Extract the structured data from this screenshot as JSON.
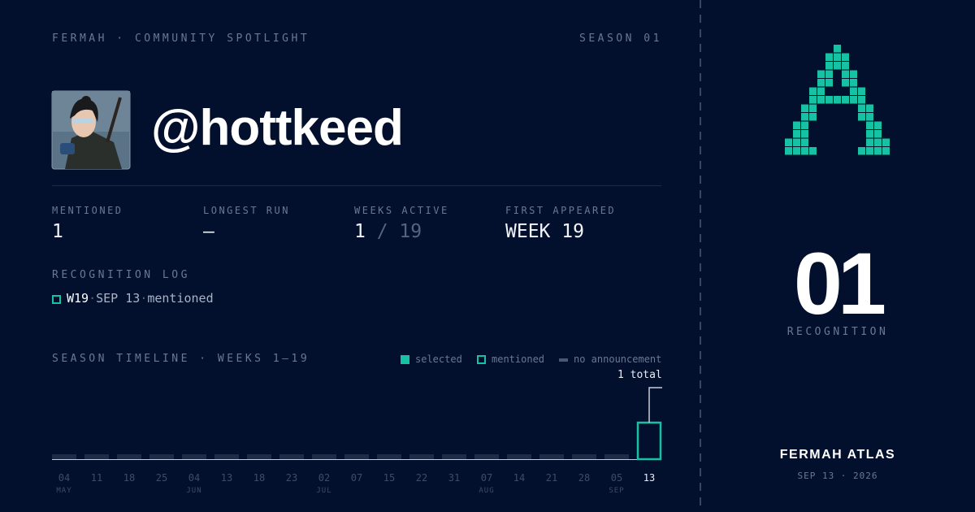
{
  "header": {
    "brand": "FERMAH · COMMUNITY SPOTLIGHT",
    "season": "SEASON 01"
  },
  "profile": {
    "handle": "@hottkeed"
  },
  "stats": [
    {
      "label": "MENTIONED",
      "value": "1"
    },
    {
      "label": "LONGEST RUN",
      "value": "—"
    },
    {
      "label": "WEEKS ACTIVE",
      "value": "1",
      "suffix": "/ 19"
    },
    {
      "label": "FIRST APPEARED",
      "value": "WEEK 19"
    }
  ],
  "log": {
    "title": "RECOGNITION LOG",
    "entries": [
      {
        "week": "W19",
        "separator": "·",
        "date": "SEP 13",
        "status": "mentioned"
      }
    ]
  },
  "timeline": {
    "title": "SEASON TIMELINE · WEEKS 1–19",
    "legend": [
      "selected",
      "mentioned",
      "no announcement"
    ],
    "total_label": "1 total",
    "weeks": [
      {
        "day": "04",
        "month": "MAY",
        "status": "no announcement"
      },
      {
        "day": "11",
        "month": null,
        "status": "no announcement"
      },
      {
        "day": "18",
        "month": null,
        "status": "no announcement"
      },
      {
        "day": "25",
        "month": null,
        "status": "no announcement"
      },
      {
        "day": "04",
        "month": "JUN",
        "status": "no announcement"
      },
      {
        "day": "13",
        "month": null,
        "status": "no announcement"
      },
      {
        "day": "18",
        "month": null,
        "status": "no announcement"
      },
      {
        "day": "23",
        "month": null,
        "status": "no announcement"
      },
      {
        "day": "02",
        "month": "JUL",
        "status": "no announcement"
      },
      {
        "day": "07",
        "month": null,
        "status": "no announcement"
      },
      {
        "day": "15",
        "month": null,
        "status": "no announcement"
      },
      {
        "day": "22",
        "month": null,
        "status": "no announcement"
      },
      {
        "day": "31",
        "month": null,
        "status": "no announcement"
      },
      {
        "day": "07",
        "month": "AUG",
        "status": "no announcement"
      },
      {
        "day": "14",
        "month": null,
        "status": "no announcement"
      },
      {
        "day": "21",
        "month": null,
        "status": "no announcement"
      },
      {
        "day": "28",
        "month": null,
        "status": "no announcement"
      },
      {
        "day": "05",
        "month": "SEP",
        "status": "no announcement"
      },
      {
        "day": "13",
        "month": null,
        "status": "mentioned"
      }
    ]
  },
  "side": {
    "rank": "01",
    "rank_label": "RECOGNITION",
    "brand": "FERMAH ATLAS",
    "date": "SEP 13 · 2026"
  }
}
